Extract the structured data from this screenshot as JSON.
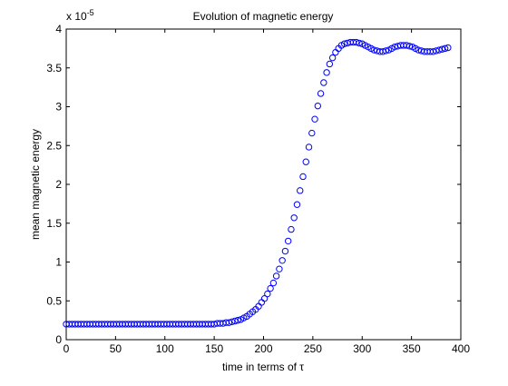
{
  "chart_data": {
    "type": "scatter",
    "title": "Evolution of magnetic energy",
    "xlabel_text": "time in terms of ",
    "xlabel_symbol": "τ",
    "ylabel": "mean magnetic energy",
    "y_exponent_prefix": "x 10",
    "y_exponent_power": "-5",
    "xlim": [
      0,
      400
    ],
    "ylim": [
      0,
      4
    ],
    "xticks": [
      "0",
      "50",
      "100",
      "150",
      "200",
      "250",
      "300",
      "350",
      "400"
    ],
    "yticks": [
      "0",
      "0.5",
      "1",
      "1.5",
      "2",
      "2.5",
      "3",
      "3.5",
      "4"
    ],
    "x_values": [
      0,
      150
    ],
    "y_values": [
      0.2,
      0.2
    ],
    "points": [
      [
        0,
        0.2
      ],
      [
        3,
        0.2
      ],
      [
        6,
        0.2
      ],
      [
        9,
        0.2
      ],
      [
        12,
        0.2
      ],
      [
        15,
        0.2
      ],
      [
        18,
        0.2
      ],
      [
        21,
        0.2
      ],
      [
        24,
        0.2
      ],
      [
        27,
        0.2
      ],
      [
        30,
        0.2
      ],
      [
        33,
        0.2
      ],
      [
        36,
        0.2
      ],
      [
        39,
        0.2
      ],
      [
        42,
        0.2
      ],
      [
        45,
        0.2
      ],
      [
        48,
        0.2
      ],
      [
        51,
        0.2
      ],
      [
        54,
        0.2
      ],
      [
        57,
        0.2
      ],
      [
        60,
        0.2
      ],
      [
        63,
        0.2
      ],
      [
        66,
        0.2
      ],
      [
        69,
        0.2
      ],
      [
        72,
        0.2
      ],
      [
        75,
        0.2
      ],
      [
        78,
        0.2
      ],
      [
        81,
        0.2
      ],
      [
        84,
        0.2
      ],
      [
        87,
        0.2
      ],
      [
        90,
        0.2
      ],
      [
        93,
        0.2
      ],
      [
        96,
        0.2
      ],
      [
        99,
        0.2
      ],
      [
        102,
        0.2
      ],
      [
        105,
        0.2
      ],
      [
        108,
        0.2
      ],
      [
        111,
        0.2
      ],
      [
        114,
        0.2
      ],
      [
        117,
        0.2
      ],
      [
        120,
        0.2
      ],
      [
        123,
        0.2
      ],
      [
        126,
        0.2
      ],
      [
        129,
        0.2
      ],
      [
        132,
        0.2
      ],
      [
        135,
        0.2
      ],
      [
        138,
        0.2
      ],
      [
        141,
        0.2
      ],
      [
        144,
        0.2
      ],
      [
        147,
        0.2
      ],
      [
        150,
        0.2
      ],
      [
        153,
        0.21
      ],
      [
        156,
        0.21
      ],
      [
        159,
        0.21
      ],
      [
        162,
        0.22
      ],
      [
        165,
        0.22
      ],
      [
        168,
        0.23
      ],
      [
        171,
        0.24
      ],
      [
        174,
        0.25
      ],
      [
        177,
        0.26
      ],
      [
        180,
        0.28
      ],
      [
        183,
        0.3
      ],
      [
        186,
        0.33
      ],
      [
        189,
        0.36
      ],
      [
        192,
        0.39
      ],
      [
        195,
        0.43
      ],
      [
        198,
        0.48
      ],
      [
        201,
        0.53
      ],
      [
        204,
        0.59
      ],
      [
        207,
        0.66
      ],
      [
        210,
        0.73
      ],
      [
        213,
        0.82
      ],
      [
        216,
        0.91
      ],
      [
        219,
        1.02
      ],
      [
        222,
        1.14
      ],
      [
        225,
        1.27
      ],
      [
        228,
        1.42
      ],
      [
        231,
        1.57
      ],
      [
        234,
        1.74
      ],
      [
        237,
        1.92
      ],
      [
        240,
        2.1
      ],
      [
        243,
        2.29
      ],
      [
        246,
        2.48
      ],
      [
        249,
        2.66
      ],
      [
        252,
        2.84
      ],
      [
        255,
        3.01
      ],
      [
        258,
        3.17
      ],
      [
        261,
        3.31
      ],
      [
        264,
        3.44
      ],
      [
        267,
        3.55
      ],
      [
        270,
        3.63
      ],
      [
        273,
        3.7
      ],
      [
        276,
        3.75
      ],
      [
        279,
        3.79
      ],
      [
        282,
        3.81
      ],
      [
        285,
        3.82
      ],
      [
        288,
        3.83
      ],
      [
        291,
        3.83
      ],
      [
        294,
        3.83
      ],
      [
        297,
        3.82
      ],
      [
        300,
        3.81
      ],
      [
        303,
        3.79
      ],
      [
        306,
        3.77
      ],
      [
        309,
        3.75
      ],
      [
        312,
        3.73
      ],
      [
        315,
        3.72
      ],
      [
        318,
        3.71
      ],
      [
        321,
        3.71
      ],
      [
        324,
        3.72
      ],
      [
        327,
        3.73
      ],
      [
        330,
        3.75
      ],
      [
        333,
        3.77
      ],
      [
        336,
        3.78
      ],
      [
        339,
        3.79
      ],
      [
        342,
        3.79
      ],
      [
        345,
        3.79
      ],
      [
        348,
        3.78
      ],
      [
        351,
        3.77
      ],
      [
        354,
        3.75
      ],
      [
        357,
        3.73
      ],
      [
        360,
        3.72
      ],
      [
        363,
        3.71
      ],
      [
        366,
        3.71
      ],
      [
        369,
        3.71
      ],
      [
        372,
        3.71
      ],
      [
        375,
        3.72
      ],
      [
        378,
        3.73
      ],
      [
        381,
        3.74
      ],
      [
        384,
        3.75
      ],
      [
        387,
        3.76
      ]
    ],
    "marker": "circle",
    "marker_color": "#0000ff",
    "grid": false,
    "legend": "none"
  }
}
